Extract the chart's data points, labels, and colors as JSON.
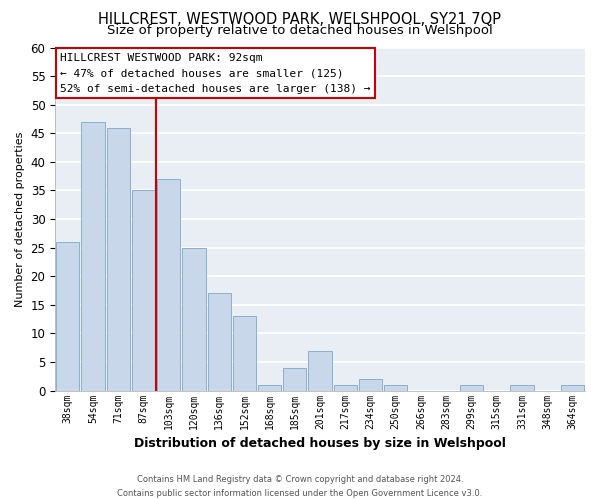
{
  "title": "HILLCREST, WESTWOOD PARK, WELSHPOOL, SY21 7QP",
  "subtitle": "Size of property relative to detached houses in Welshpool",
  "xlabel": "Distribution of detached houses by size in Welshpool",
  "ylabel": "Number of detached properties",
  "footer_line1": "Contains HM Land Registry data © Crown copyright and database right 2024.",
  "footer_line2": "Contains public sector information licensed under the Open Government Licence v3.0.",
  "bar_labels": [
    "38sqm",
    "54sqm",
    "71sqm",
    "87sqm",
    "103sqm",
    "120sqm",
    "136sqm",
    "152sqm",
    "168sqm",
    "185sqm",
    "201sqm",
    "217sqm",
    "234sqm",
    "250sqm",
    "266sqm",
    "283sqm",
    "299sqm",
    "315sqm",
    "331sqm",
    "348sqm",
    "364sqm"
  ],
  "bar_values": [
    26,
    47,
    46,
    35,
    37,
    25,
    17,
    13,
    1,
    4,
    7,
    1,
    2,
    1,
    0,
    0,
    1,
    0,
    1,
    0,
    1
  ],
  "bar_color": "#c8d8ea",
  "bar_edge_color": "#8ab0cc",
  "vline_x": 3.5,
  "vline_color": "#cc0000",
  "annotation_title": "HILLCREST WESTWOOD PARK: 92sqm",
  "annotation_line1": "← 47% of detached houses are smaller (125)",
  "annotation_line2": "52% of semi-detached houses are larger (138) →",
  "annotation_box_color": "#ffffff",
  "annotation_box_edge": "#cc0000",
  "ylim": [
    0,
    60
  ],
  "yticks": [
    0,
    5,
    10,
    15,
    20,
    25,
    30,
    35,
    40,
    45,
    50,
    55,
    60
  ],
  "background_color": "#ffffff",
  "plot_bg_color": "#e8eef4",
  "grid_color": "#ffffff",
  "title_fontsize": 10.5,
  "subtitle_fontsize": 9.5
}
